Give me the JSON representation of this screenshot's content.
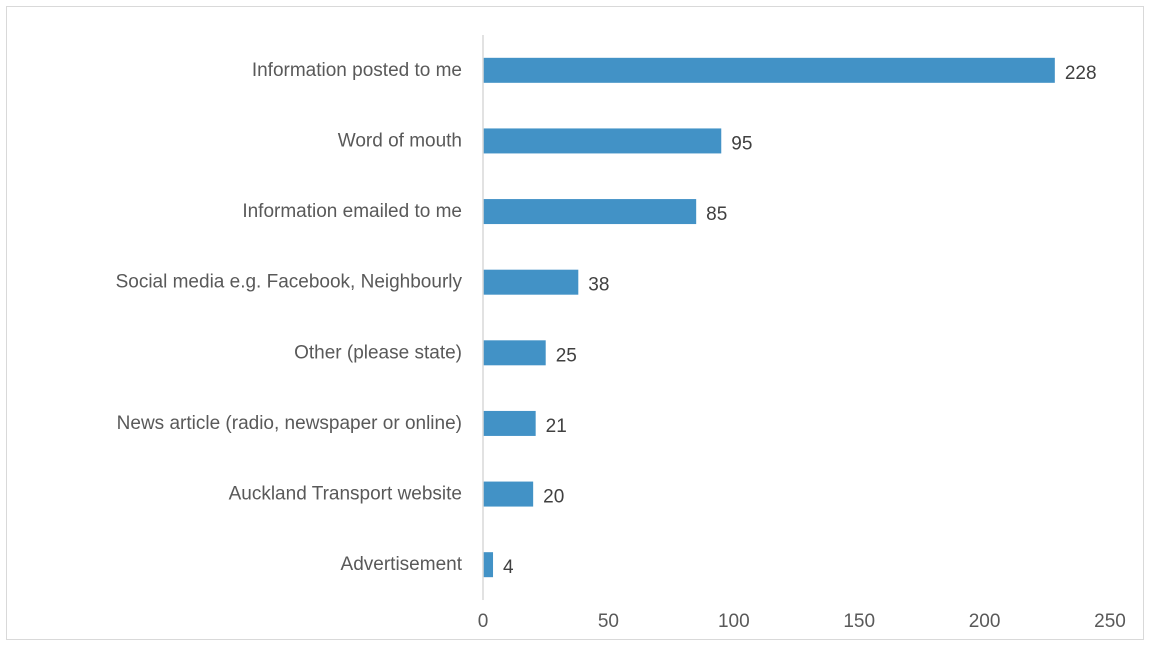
{
  "chart_data": {
    "type": "bar",
    "orientation": "horizontal",
    "categories": [
      "Information posted to me",
      "Word of mouth",
      "Information emailed to me",
      "Social media e.g. Facebook, Neighbourly",
      "Other (please state)",
      "News article (radio, newspaper or online)",
      "Auckland Transport website",
      "Advertisement"
    ],
    "values": [
      228,
      95,
      85,
      38,
      25,
      21,
      20,
      4
    ],
    "title": "",
    "xlabel": "",
    "ylabel": "",
    "xlim": [
      0,
      250
    ],
    "xticks": [
      0,
      50,
      100,
      150,
      200,
      250
    ],
    "grid": false,
    "legend": "none",
    "data_labels": true,
    "bar_color": "#4292c6"
  }
}
